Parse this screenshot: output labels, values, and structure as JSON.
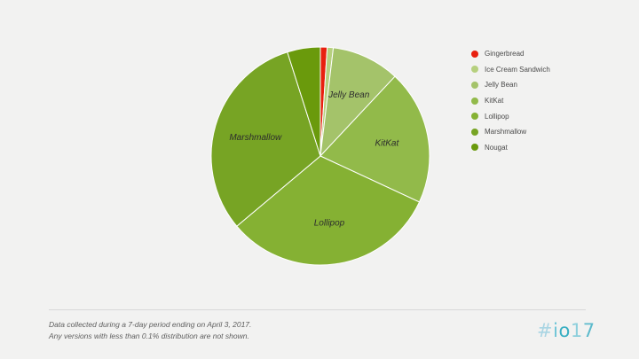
{
  "chart_data": {
    "type": "pie",
    "title": "",
    "start_angle_deg": 0,
    "direction": "clockwise",
    "slices": [
      {
        "label": "Gingerbread",
        "value": 1.0,
        "color": "#e8200f",
        "show_label": false
      },
      {
        "label": "Ice Cream Sandwich",
        "value": 0.9,
        "color": "#b6d07e",
        "show_label": false
      },
      {
        "label": "Jelly Bean",
        "value": 10.1,
        "color": "#a4c36a",
        "show_label": true
      },
      {
        "label": "KitKat",
        "value": 20.0,
        "color": "#92ba4a",
        "show_label": true
      },
      {
        "label": "Lollipop",
        "value": 32.0,
        "color": "#85b133",
        "show_label": true
      },
      {
        "label": "Marshmallow",
        "value": 31.3,
        "color": "#77a424",
        "show_label": true
      },
      {
        "label": "Nougat",
        "value": 4.9,
        "color": "#6a9a0c",
        "show_label": false
      }
    ],
    "legend_position": "right"
  },
  "legend": {
    "items": [
      {
        "label": "Gingerbread",
        "color": "#e8200f"
      },
      {
        "label": "Ice Cream Sandwich",
        "color": "#b6d07e"
      },
      {
        "label": "Jelly Bean",
        "color": "#a4c36a"
      },
      {
        "label": "KitKat",
        "color": "#92ba4a"
      },
      {
        "label": "Lollipop",
        "color": "#85b133"
      },
      {
        "label": "Marshmallow",
        "color": "#77a424"
      },
      {
        "label": "Nougat",
        "color": "#6a9a0c"
      }
    ]
  },
  "footnote": {
    "line1": "Data collected during a 7-day period ending on April 3, 2017.",
    "line2": "Any versions with less than 0.1% distribution are not shown."
  },
  "logo": {
    "text": "#io17",
    "chars": [
      {
        "ch": "#",
        "color": "#a9d5e3"
      },
      {
        "ch": "i",
        "color": "#6cc4d6"
      },
      {
        "ch": "o",
        "color": "#37aec2"
      },
      {
        "ch": "1",
        "color": "#8ccfdc"
      },
      {
        "ch": "7",
        "color": "#5cbacc"
      }
    ]
  }
}
